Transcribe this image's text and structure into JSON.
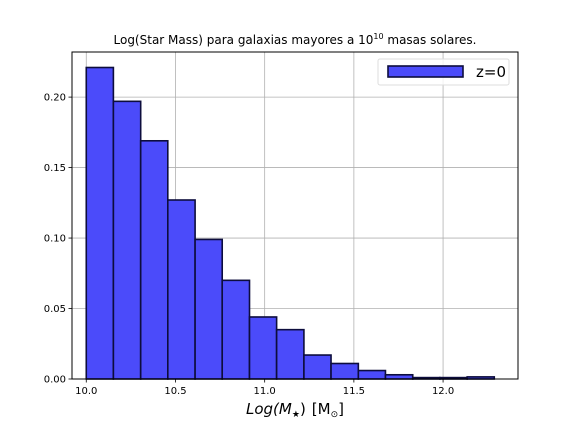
{
  "chart_data": {
    "type": "bar",
    "title": "Log(Star Mass) para galaxias mayores a 10",
    "title_superscript": "10",
    "title_suffix": " masas solares.",
    "xlabel_main": "Log(M",
    "xlabel_star": "★",
    "xlabel_close": ")",
    "xlabel_unit_open": "[M",
    "xlabel_unit_sub": "⊙",
    "xlabel_unit_close": "]",
    "xlim": [
      9.92,
      12.42
    ],
    "ylim": [
      0,
      0.232
    ],
    "xticks": [
      10.0,
      10.5,
      11.0,
      11.5,
      12.0
    ],
    "xtick_labels": [
      "10.0",
      "10.5",
      "11.0",
      "11.5",
      "12.0"
    ],
    "yticks": [
      0.0,
      0.05,
      0.1,
      0.15,
      0.2
    ],
    "ytick_labels": [
      "0.00",
      "0.05",
      "0.10",
      "0.15",
      "0.20"
    ],
    "grid": true,
    "bin_edges": [
      10.0,
      10.152,
      10.305,
      10.457,
      10.61,
      10.762,
      10.915,
      11.067,
      11.22,
      11.372,
      11.525,
      11.677,
      11.83,
      11.982,
      12.135,
      12.287
    ],
    "values": [
      0.221,
      0.197,
      0.169,
      0.127,
      0.099,
      0.07,
      0.044,
      0.035,
      0.017,
      0.011,
      0.006,
      0.003,
      0.001,
      0.001,
      0.0015
    ],
    "series": [
      {
        "name": "z=0",
        "values": [
          0.221,
          0.197,
          0.169,
          0.127,
          0.099,
          0.07,
          0.044,
          0.035,
          0.017,
          0.011,
          0.006,
          0.003,
          0.001,
          0.001,
          0.0015
        ]
      }
    ],
    "legend_position": "top-right",
    "colors": {
      "bar_fill": "#4b4bfa",
      "bar_edge": "#0d0d3d",
      "grid": "#b0b0b0"
    }
  }
}
